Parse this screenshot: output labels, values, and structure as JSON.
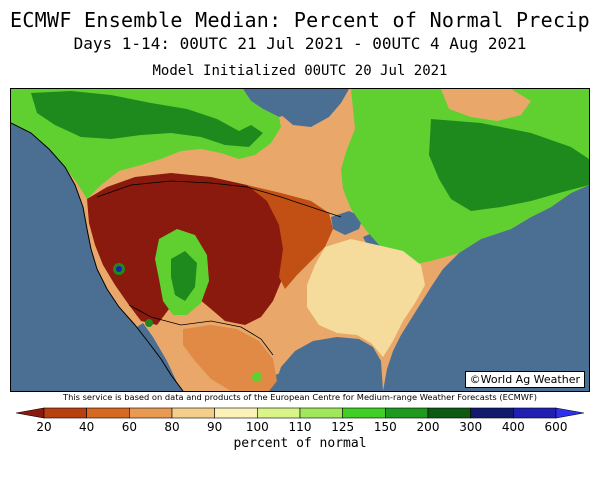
{
  "title": "ECMWF Ensemble Median: Percent of Normal Precip",
  "subtitle": "Days 1-14: 00UTC 21 Jul 2021 - 00UTC 4 Aug 2021",
  "init_line": "Model Initialized 00UTC 20 Jul 2021",
  "watermark": "©World Ag Weather",
  "disclaimer": "This service is based on data and products of the European Centre for Medium-range Weather Forecasts (ECMWF)",
  "legend": {
    "units": "percent of normal",
    "ticks": [
      "20",
      "40",
      "60",
      "80",
      "90",
      "100",
      "110",
      "125",
      "150",
      "200",
      "300",
      "400",
      "600"
    ],
    "colors": [
      "#8b1a0e",
      "#b8400f",
      "#d4691f",
      "#e89a52",
      "#f4cf8c",
      "#fbf2ba",
      "#d9f58a",
      "#9fe85a",
      "#3fcf25",
      "#1e9a1e",
      "#0d5a12",
      "#121a6e",
      "#1f1fb2",
      "#2f2ff2"
    ]
  },
  "colors": {
    "ocean": "#4a6f92",
    "very_dry": "#8b1a0e",
    "dry": "#c24f14",
    "moderate_dry": "#e08a45",
    "normal": "#f6dc9c",
    "wet": "#5fd02f",
    "very_wet": "#1e8a1e"
  }
}
